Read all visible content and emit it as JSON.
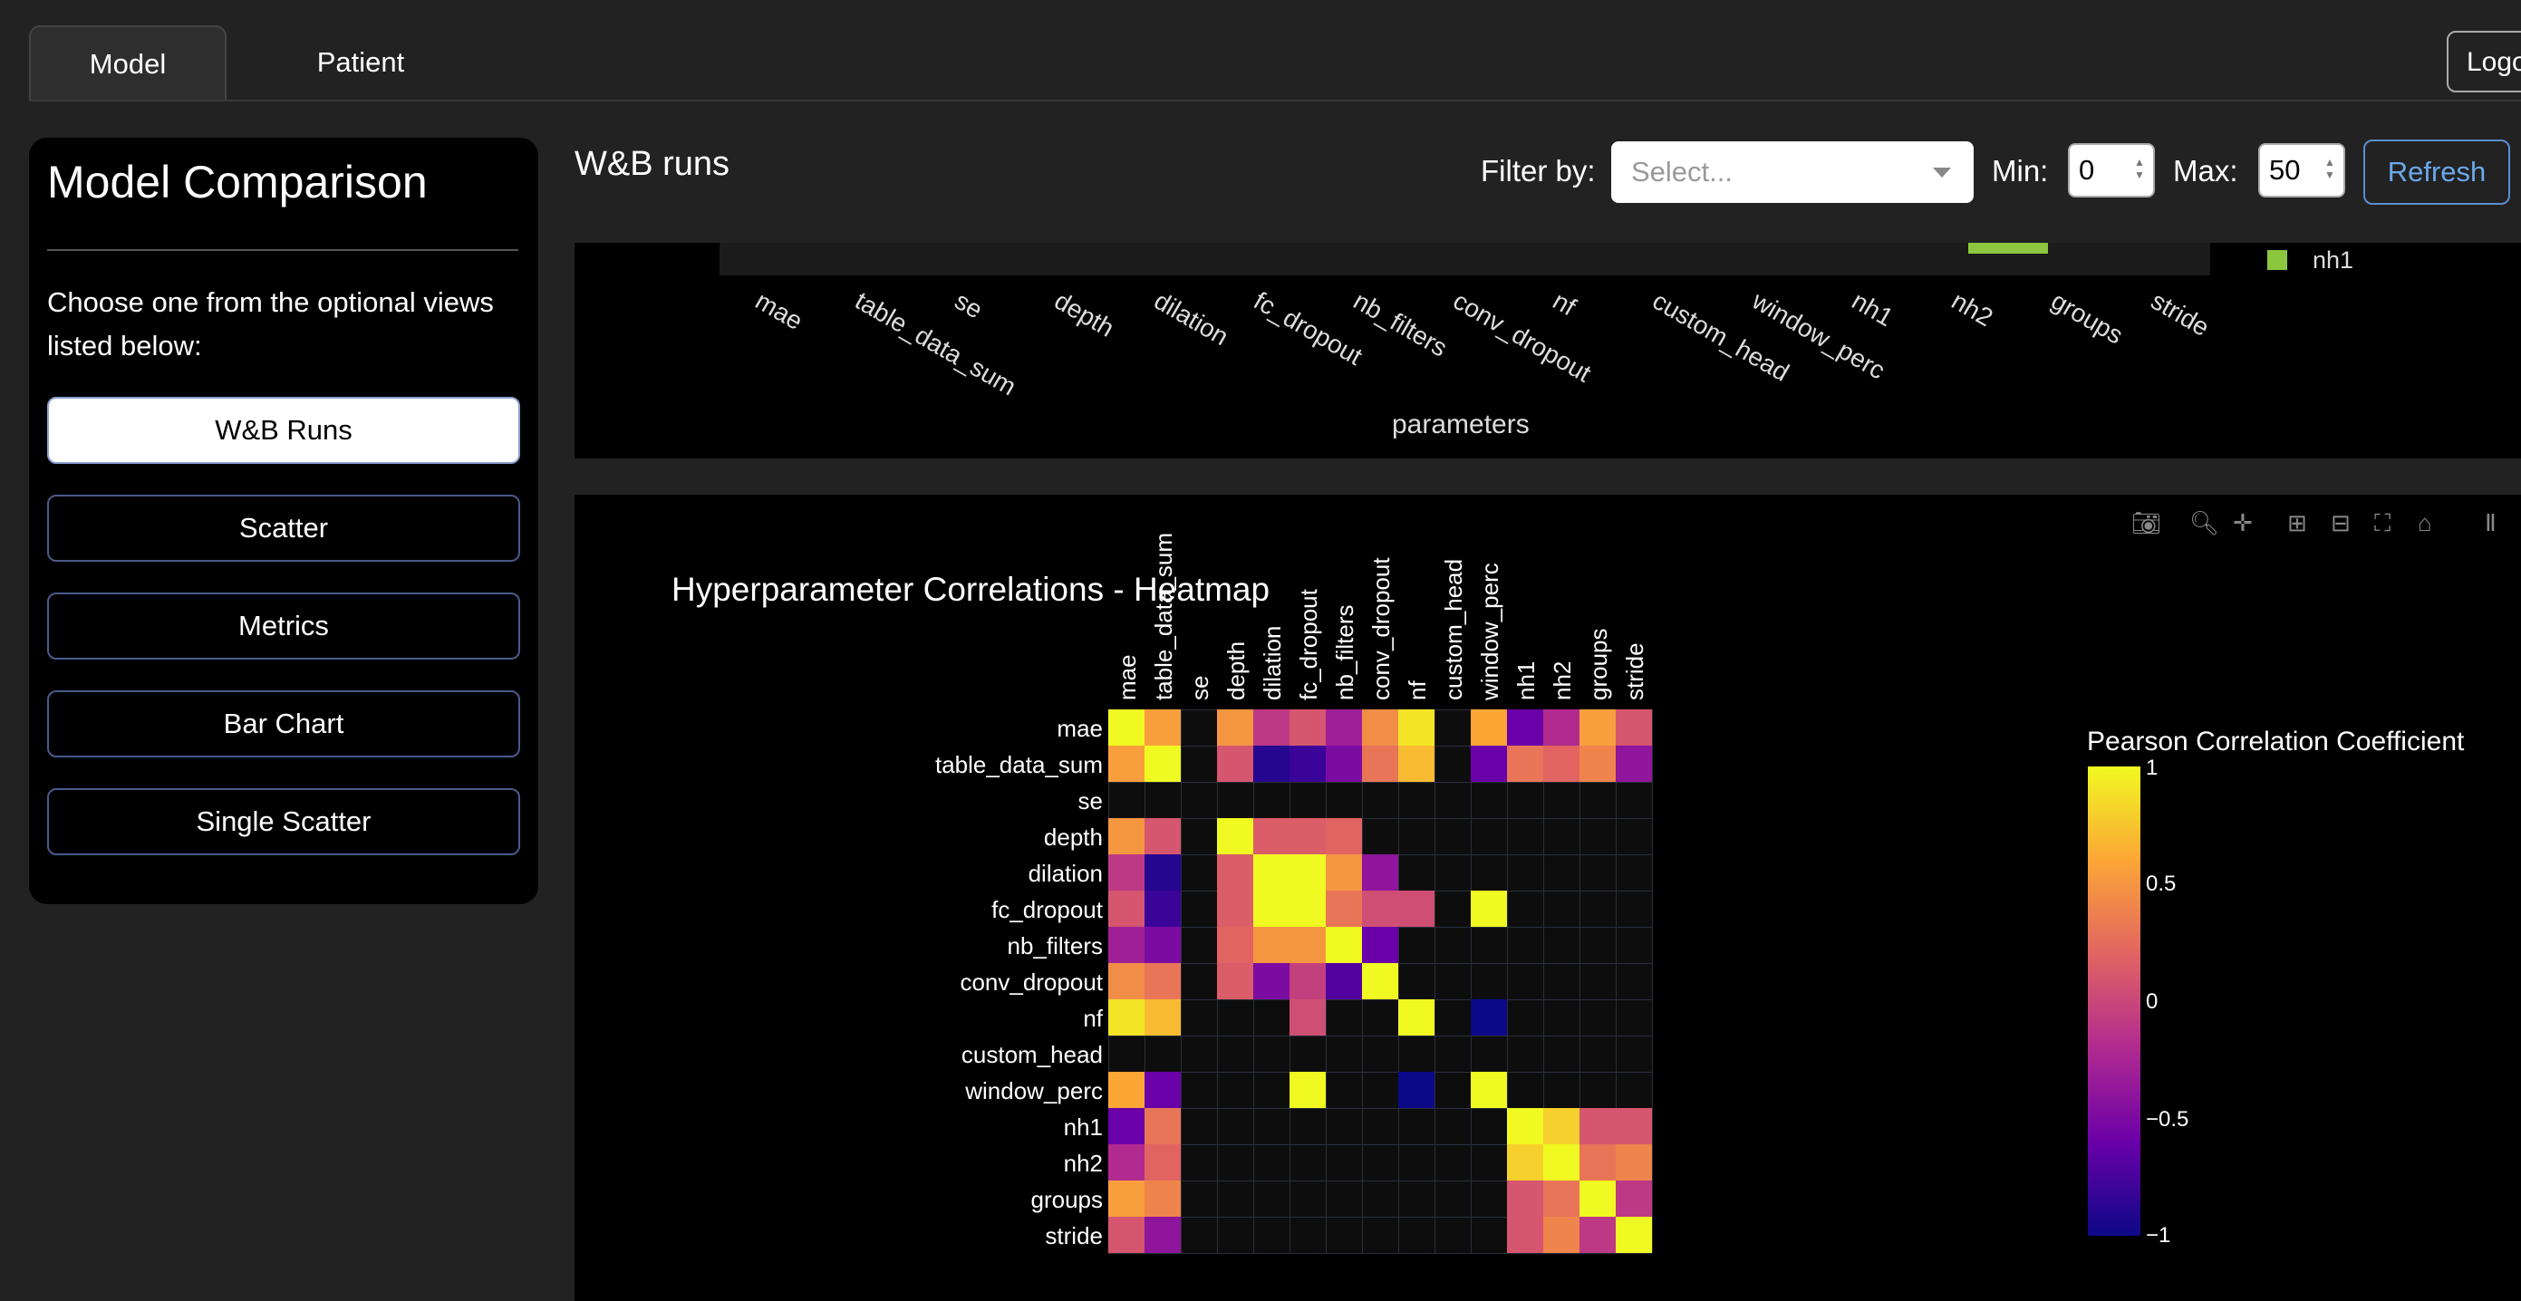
{
  "tabs": [
    {
      "label": "Model"
    },
    {
      "label": "Patient"
    }
  ],
  "logout_label": "Logo",
  "sidebar": {
    "title": "Model Comparison",
    "instructions": "Choose one from the optional views listed below:",
    "buttons": [
      {
        "label": "W&B Runs"
      },
      {
        "label": "Scatter"
      },
      {
        "label": "Metrics"
      },
      {
        "label": "Bar Chart"
      },
      {
        "label": "Single Scatter"
      }
    ]
  },
  "runs": {
    "title": "W&B runs",
    "filter_label": "Filter by:",
    "select_placeholder": "Select...",
    "min_label": "Min:",
    "min_value": "0",
    "max_label": "Max:",
    "max_value": "50",
    "refresh_label": "Refresh"
  },
  "bar_chart": {
    "categories": [
      "mae",
      "table_data_sum",
      "se",
      "depth",
      "dilation",
      "fc_dropout",
      "nb_filters",
      "conv_dropout",
      "nf",
      "custom_head",
      "window_perc",
      "nh1",
      "nh2",
      "groups",
      "stride"
    ],
    "xlabel": "parameters",
    "legend": "nh1",
    "bar_color": "#8dc63f"
  },
  "modebar_icons": [
    "camera-icon",
    "zoom-icon",
    "pan-icon",
    "zoom-in-icon",
    "zoom-out-icon",
    "autoscale-icon",
    "home-icon",
    "plotly-logo-icon"
  ],
  "chart_data": {
    "type": "heatmap",
    "title": "Hyperparameter Correlations - Heatmap",
    "colorbar_title": "Pearson Correlation Coefficient",
    "colorbar_ticks": [
      "1",
      "0.5",
      "0",
      "−0.5",
      "−1"
    ],
    "zrange": [
      -1,
      1
    ],
    "colorscale": "plasma",
    "labels": [
      "mae",
      "table_data_sum",
      "se",
      "depth",
      "dilation",
      "fc_dropout",
      "nb_filters",
      "conv_dropout",
      "nf",
      "custom_head",
      "window_perc",
      "nh1",
      "nh2",
      "groups",
      "stride"
    ],
    "z": [
      [
        1,
        0.55,
        null,
        0.5,
        -0.1,
        0.1,
        -0.3,
        0.45,
        0.9,
        null,
        0.6,
        -0.6,
        -0.2,
        0.55,
        0.1
      ],
      [
        0.55,
        1,
        null,
        0.1,
        -0.9,
        -0.8,
        -0.5,
        0.3,
        0.7,
        null,
        -0.6,
        0.3,
        0.2,
        0.4,
        -0.4
      ],
      [
        null,
        null,
        null,
        null,
        null,
        null,
        null,
        null,
        null,
        null,
        null,
        null,
        null,
        null,
        null
      ],
      [
        0.5,
        0.1,
        null,
        1,
        0.15,
        0.15,
        0.2,
        null,
        null,
        null,
        null,
        null,
        null,
        null,
        null
      ],
      [
        -0.1,
        -0.9,
        null,
        0.15,
        1,
        1,
        0.5,
        -0.4,
        null,
        null,
        null,
        null,
        null,
        null,
        null
      ],
      [
        0.1,
        -0.8,
        null,
        0.15,
        1,
        1,
        0.3,
        0.05,
        0.05,
        null,
        1,
        null,
        null,
        null,
        null
      ],
      [
        -0.3,
        -0.5,
        null,
        0.2,
        0.5,
        0.5,
        1,
        -0.6,
        null,
        null,
        null,
        null,
        null,
        null,
        null
      ],
      [
        0.45,
        0.3,
        null,
        0.15,
        -0.5,
        -0.05,
        -0.7,
        1,
        null,
        null,
        null,
        null,
        null,
        null,
        null
      ],
      [
        0.9,
        0.7,
        null,
        null,
        null,
        0.05,
        null,
        null,
        1,
        null,
        -1,
        null,
        null,
        null,
        null
      ],
      [
        null,
        null,
        null,
        null,
        null,
        null,
        null,
        null,
        null,
        null,
        null,
        null,
        null,
        null,
        null
      ],
      [
        0.6,
        -0.6,
        null,
        null,
        null,
        1,
        null,
        null,
        -1,
        null,
        1,
        null,
        null,
        null,
        null
      ],
      [
        -0.6,
        0.3,
        null,
        null,
        null,
        null,
        null,
        null,
        null,
        null,
        null,
        1,
        0.8,
        0.1,
        0.1
      ],
      [
        -0.2,
        0.2,
        null,
        null,
        null,
        null,
        null,
        null,
        null,
        null,
        null,
        0.8,
        1,
        0.3,
        0.4
      ],
      [
        0.55,
        0.4,
        null,
        null,
        null,
        null,
        null,
        null,
        null,
        null,
        null,
        0.1,
        0.3,
        1,
        -0.1
      ],
      [
        0.1,
        -0.4,
        null,
        null,
        null,
        null,
        null,
        null,
        null,
        null,
        null,
        0.1,
        0.4,
        -0.1,
        1
      ]
    ]
  }
}
